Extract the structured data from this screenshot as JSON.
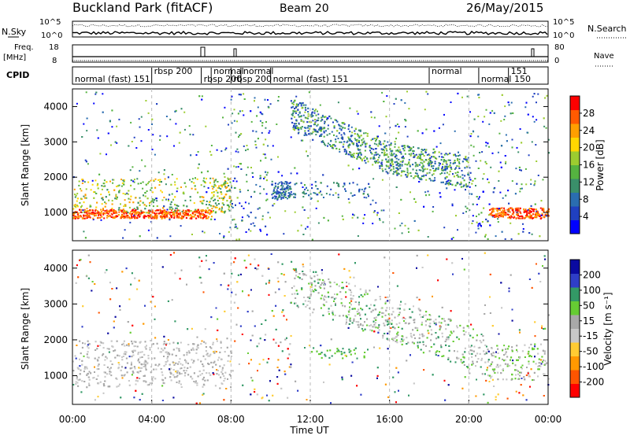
{
  "header": {
    "station": "Buckland Park (fitACF)",
    "beam": "Beam 20",
    "date": "26/May/2015"
  },
  "panels": {
    "nsky_label": "N.Sky",
    "nsearch_label": "N.Search",
    "nsky_ticks": [
      "10^5",
      "10^0"
    ],
    "freq_label": "Freq.",
    "freq_unit": "[MHz]",
    "freq_ticks": [
      "18",
      "8"
    ],
    "nave_label": "Nave",
    "nave_ticks": [
      "80",
      "0"
    ],
    "cpid_label": "CPID",
    "cpid_segments": [
      {
        "label": "normal (fast)  151",
        "at": "00:00"
      },
      {
        "label": "rbsp 200",
        "at": "04:00"
      },
      {
        "label": "rbsp 200",
        "at": "06:30"
      },
      {
        "label": "normal",
        "at": "07:00"
      },
      {
        "label": "rbsp 200",
        "at": "08:00"
      },
      {
        "label": "normal",
        "at": "08:30"
      },
      {
        "label": "normal (fast)  151",
        "at": "10:00"
      },
      {
        "label": "normal",
        "at": "18:00"
      },
      {
        "label": "normal 150",
        "at": "20:30"
      },
      {
        "label": "151",
        "at": "22:00"
      }
    ]
  },
  "colors": {
    "power_scale": [
      "#0000ff",
      "#2040c0",
      "#2a6db0",
      "#3a8f6a",
      "#55b340",
      "#9ccc30",
      "#ffd700",
      "#ff9f00",
      "#ff5a00",
      "#ff0000"
    ],
    "velocity_scale": [
      "#ff0000",
      "#ff5500",
      "#ff9900",
      "#ffcc33",
      "#c8c8c8",
      "#a8a8a8",
      "#66cc33",
      "#339966",
      "#2f3ec8",
      "#0a0aa0"
    ]
  },
  "chart_data": [
    {
      "type": "heatmap",
      "name_hint": "power",
      "ylabel": "Slant Range [km]",
      "yticks": [
        "1000",
        "2000",
        "3000",
        "4000"
      ],
      "ylim": [
        200,
        4500
      ],
      "xlim": [
        "00:00",
        "24:00"
      ],
      "colorbar_label": "Power [dB]",
      "colorbar_ticks": [
        "4",
        "8",
        "12",
        "16",
        "20",
        "24",
        "28"
      ],
      "colorbar_range": [
        0,
        32
      ]
    },
    {
      "type": "heatmap",
      "name_hint": "velocity",
      "ylabel": "Slant Range [km]",
      "yticks": [
        "1000",
        "2000",
        "3000",
        "4000"
      ],
      "ylim": [
        200,
        4500
      ],
      "xlim": [
        "00:00",
        "24:00"
      ],
      "colorbar_label": "Velocity [m s⁻¹]",
      "colorbar_ticks": [
        "-200",
        "-100",
        "-50",
        "-15",
        "15",
        "50",
        "100",
        "200"
      ],
      "colorbar_range": [
        -250,
        250
      ]
    }
  ],
  "xaxis": {
    "ticks": [
      "00:00",
      "04:00",
      "08:00",
      "12:00",
      "16:00",
      "20:00",
      "00:00"
    ],
    "label": "Time UT"
  }
}
